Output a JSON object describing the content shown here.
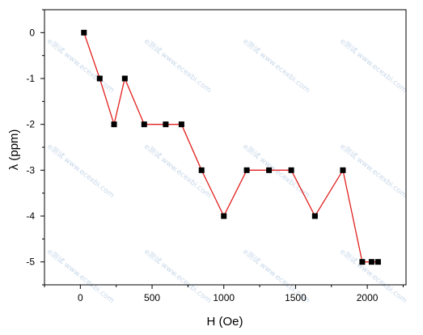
{
  "chart_data": {
    "type": "line",
    "title": "",
    "xlabel": "H (Oe)",
    "ylabel": "λ (ppm)",
    "xlim": [
      -250,
      2270
    ],
    "ylim": [
      -5.5,
      0.5
    ],
    "x_ticks": [
      0,
      500,
      1000,
      1500,
      2000
    ],
    "y_ticks": [
      0,
      -1,
      -2,
      -3,
      -4,
      -5
    ],
    "x_tick_labels": [
      "0",
      "500",
      "1000",
      "1500",
      "2000"
    ],
    "y_tick_labels": [
      "0",
      "-1",
      "-2",
      "-3",
      "-4",
      "-5"
    ],
    "series": [
      {
        "color": "#e0201e",
        "marker": "square",
        "marker_color": "#000000",
        "x": [
          25,
          135,
          235,
          310,
          445,
          595,
          705,
          845,
          1000,
          1160,
          1315,
          1470,
          1635,
          1830,
          1965,
          2030,
          2075
        ],
        "y": [
          0,
          -1,
          -2,
          -1,
          -2,
          -2,
          -2,
          -3,
          -4,
          -3,
          -3,
          -3,
          -4,
          -3,
          -5,
          -5,
          -5
        ]
      }
    ],
    "grid": false,
    "legend": "none"
  },
  "watermark": {
    "text": "e测试 www.ecexbi.com"
  }
}
